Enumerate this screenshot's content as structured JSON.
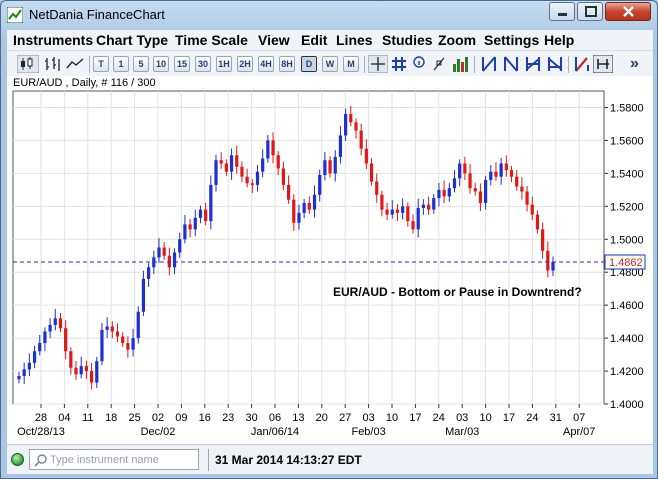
{
  "window": {
    "title": "NetDania FinanceChart"
  },
  "menu": [
    "Instruments",
    "Chart Type",
    "Time Scale",
    "View",
    "Edit",
    "Lines",
    "Studies",
    "Zoom",
    "Settings",
    "Help"
  ],
  "toolbar": {
    "timescales": [
      "T",
      "1",
      "5",
      "10",
      "15",
      "30",
      "1H",
      "2H",
      "4H",
      "8H",
      "D",
      "W",
      "M"
    ],
    "active_timescale": "D",
    "more_label": "»"
  },
  "chart_data": {
    "type": "candlestick",
    "header": "EUR/AUD , Daily, # 116 / 300",
    "annotation": "EUR/AUD - Bottom or Pause in Downtrend?",
    "last_price_label": "1.4862",
    "last_price": 1.4862,
    "ylim": [
      1.4,
      1.59
    ],
    "y_ticks": [
      "1.5800",
      "1.5600",
      "1.5400",
      "1.5200",
      "1.5000",
      "1.4800",
      "1.4600",
      "1.4400",
      "1.4200",
      "1.4000"
    ],
    "x_ticks_top": [
      "28",
      "04",
      "11",
      "18",
      "25",
      "02",
      "09",
      "16",
      "23",
      "30",
      "06",
      "13",
      "20",
      "27",
      "03",
      "10",
      "17",
      "24",
      "03",
      "10",
      "17",
      "24",
      "31",
      "07"
    ],
    "x_ticks_bottom": [
      "Oct/28/13",
      "Dec/02",
      "Jan/06/14",
      "Feb/03",
      "Mar/03",
      "Apr/07"
    ],
    "grid": true,
    "colors": {
      "up": "#1f2fd0",
      "down": "#e01818",
      "price_line": "#1f2fbf"
    },
    "close": [
      1.417,
      1.421,
      1.425,
      1.432,
      1.437,
      1.444,
      1.448,
      1.452,
      1.446,
      1.432,
      1.422,
      1.418,
      1.423,
      1.42,
      1.413,
      1.426,
      1.445,
      1.447,
      1.444,
      1.441,
      1.437,
      1.433,
      1.44,
      1.456,
      1.476,
      1.483,
      1.489,
      1.495,
      1.49,
      1.483,
      1.492,
      1.5,
      1.509,
      1.506,
      1.513,
      1.518,
      1.511,
      1.533,
      1.548,
      1.546,
      1.541,
      1.551,
      1.544,
      1.538,
      1.534,
      1.533,
      1.541,
      1.549,
      1.56,
      1.551,
      1.543,
      1.533,
      1.524,
      1.51,
      1.516,
      1.522,
      1.518,
      1.527,
      1.539,
      1.548,
      1.54,
      1.55,
      1.563,
      1.576,
      1.571,
      1.566,
      1.555,
      1.546,
      1.535,
      1.527,
      1.518,
      1.515,
      1.518,
      1.516,
      1.52,
      1.511,
      1.506,
      1.519,
      1.521,
      1.518,
      1.525,
      1.53,
      1.526,
      1.531,
      1.537,
      1.546,
      1.54,
      1.531,
      1.529,
      1.522,
      1.536,
      1.541,
      1.538,
      1.546,
      1.542,
      1.538,
      1.532,
      1.529,
      1.521,
      1.515,
      1.506,
      1.493,
      1.481,
      1.4862
    ]
  },
  "status": {
    "search_placeholder": "Type instrument name",
    "datetime": "31 Mar 2014 14:13:27 EDT"
  }
}
